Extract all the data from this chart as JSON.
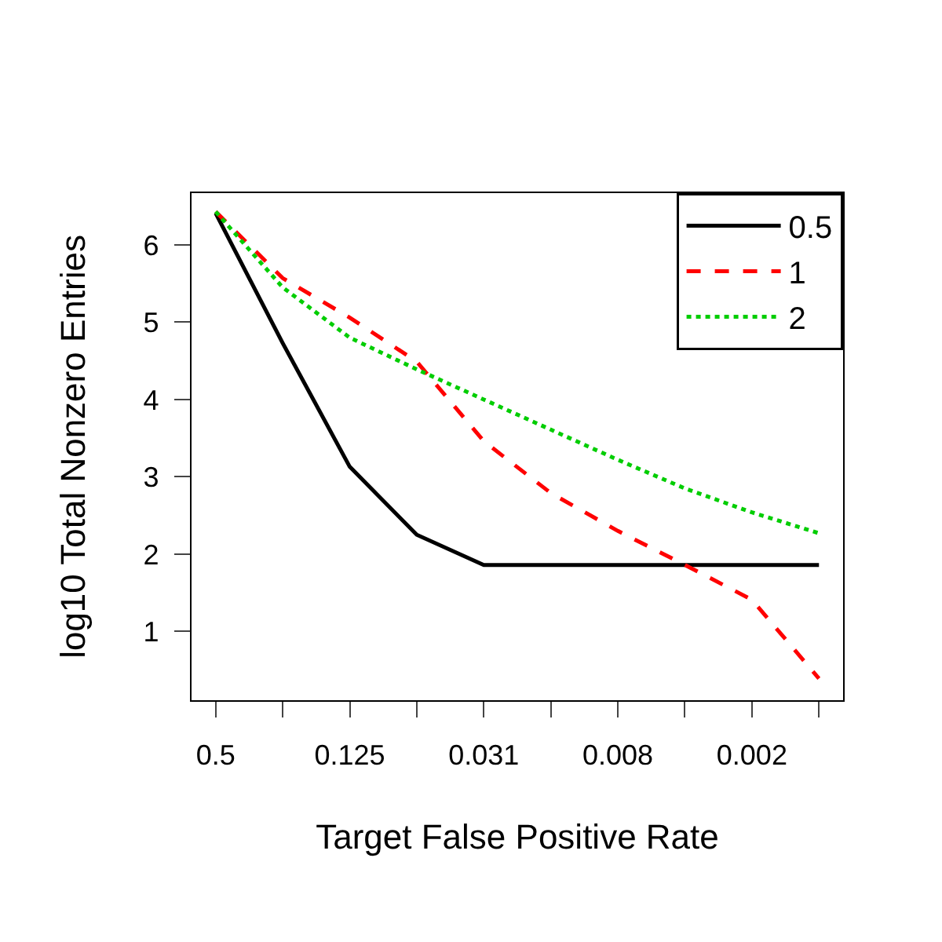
{
  "chart_data": {
    "type": "line",
    "xlabel": "Target False Positive Rate",
    "ylabel": "log10 Total Nonzero Entries",
    "categories": [
      "0.5",
      null,
      "0.125",
      null,
      "0.031",
      null,
      "0.008",
      null,
      "0.002",
      null
    ],
    "series": [
      {
        "name": "0.5",
        "color": "#000000",
        "line_style": "solid",
        "values": [
          6.41,
          4.73,
          3.13,
          2.25,
          1.86,
          1.86,
          1.86,
          1.86,
          1.86,
          1.86
        ]
      },
      {
        "name": "1",
        "color": "#ff0000",
        "line_style": "dashed",
        "values": [
          6.43,
          5.57,
          5.06,
          4.49,
          3.46,
          2.79,
          2.3,
          1.86,
          1.41,
          0.39
        ]
      },
      {
        "name": "2",
        "color": "#00cd00",
        "line_style": "dotted",
        "values": [
          6.43,
          5.45,
          4.8,
          4.39,
          4.0,
          3.61,
          3.22,
          2.85,
          2.54,
          2.27
        ]
      }
    ],
    "ylim": [
      0.11,
      6.67
    ],
    "yticks": [
      1,
      2,
      3,
      4,
      5,
      6
    ],
    "grid": false,
    "legend": "top right",
    "marker": "none"
  }
}
